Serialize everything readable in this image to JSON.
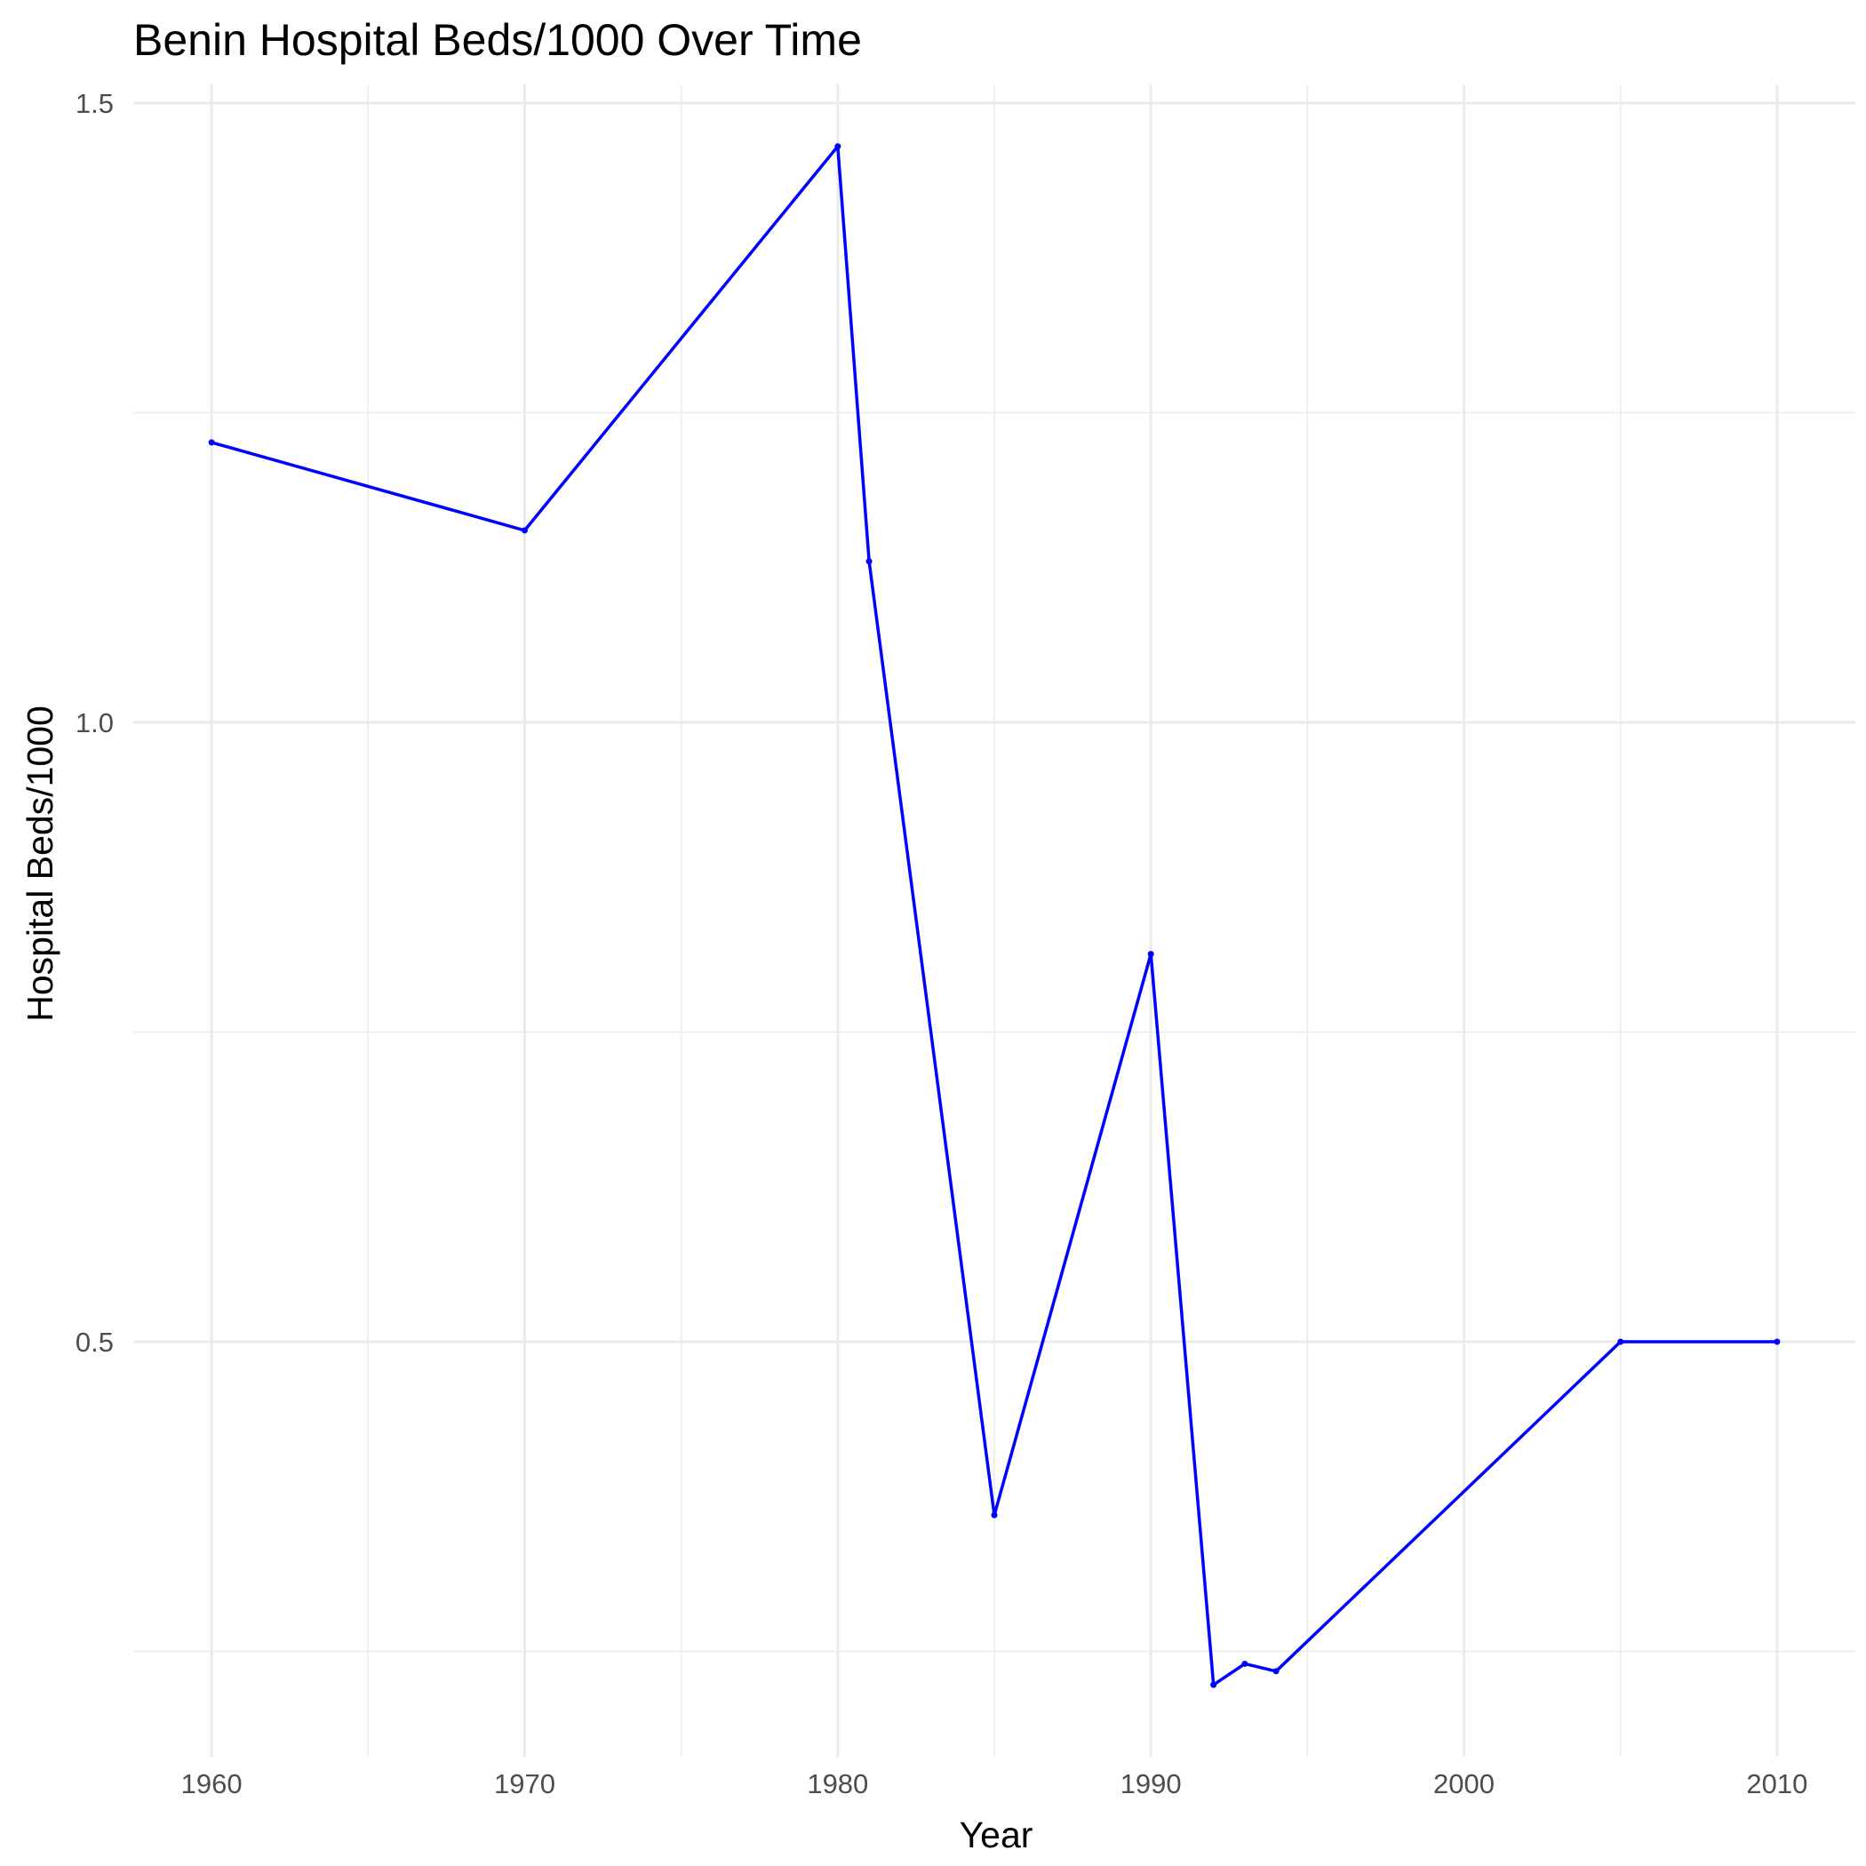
{
  "chart_data": {
    "type": "line",
    "title": "Benin Hospital Beds/1000 Over Time",
    "xlabel": "Year",
    "ylabel": "Hospital Beds/1000",
    "xlim": [
      1957.5,
      2012.5
    ],
    "ylim": [
      0.165,
      1.515
    ],
    "x_ticks": [
      1960,
      1970,
      1980,
      1990,
      2000,
      2010
    ],
    "x_tick_labels": [
      "1960",
      "1970",
      "1980",
      "1990",
      "2000",
      "2010"
    ],
    "x_minor_ticks": [
      1965,
      1975,
      1985,
      1995,
      2005
    ],
    "y_ticks": [
      0.5,
      1.0,
      1.5
    ],
    "y_tick_labels": [
      "0.5",
      "1.0",
      "1.5"
    ],
    "y_minor_ticks": [
      0.25,
      0.75,
      1.25
    ],
    "grid": true,
    "legend": "none",
    "series": [
      {
        "color": "#0000ff",
        "x": [
          1960,
          1970,
          1980,
          1981,
          1985,
          1990,
          1992,
          1993,
          1994,
          2005,
          2010
        ],
        "y": [
          1.226,
          1.155,
          1.465,
          1.13,
          0.36,
          0.813,
          0.223,
          0.24,
          0.234,
          0.5,
          0.5
        ]
      }
    ]
  }
}
